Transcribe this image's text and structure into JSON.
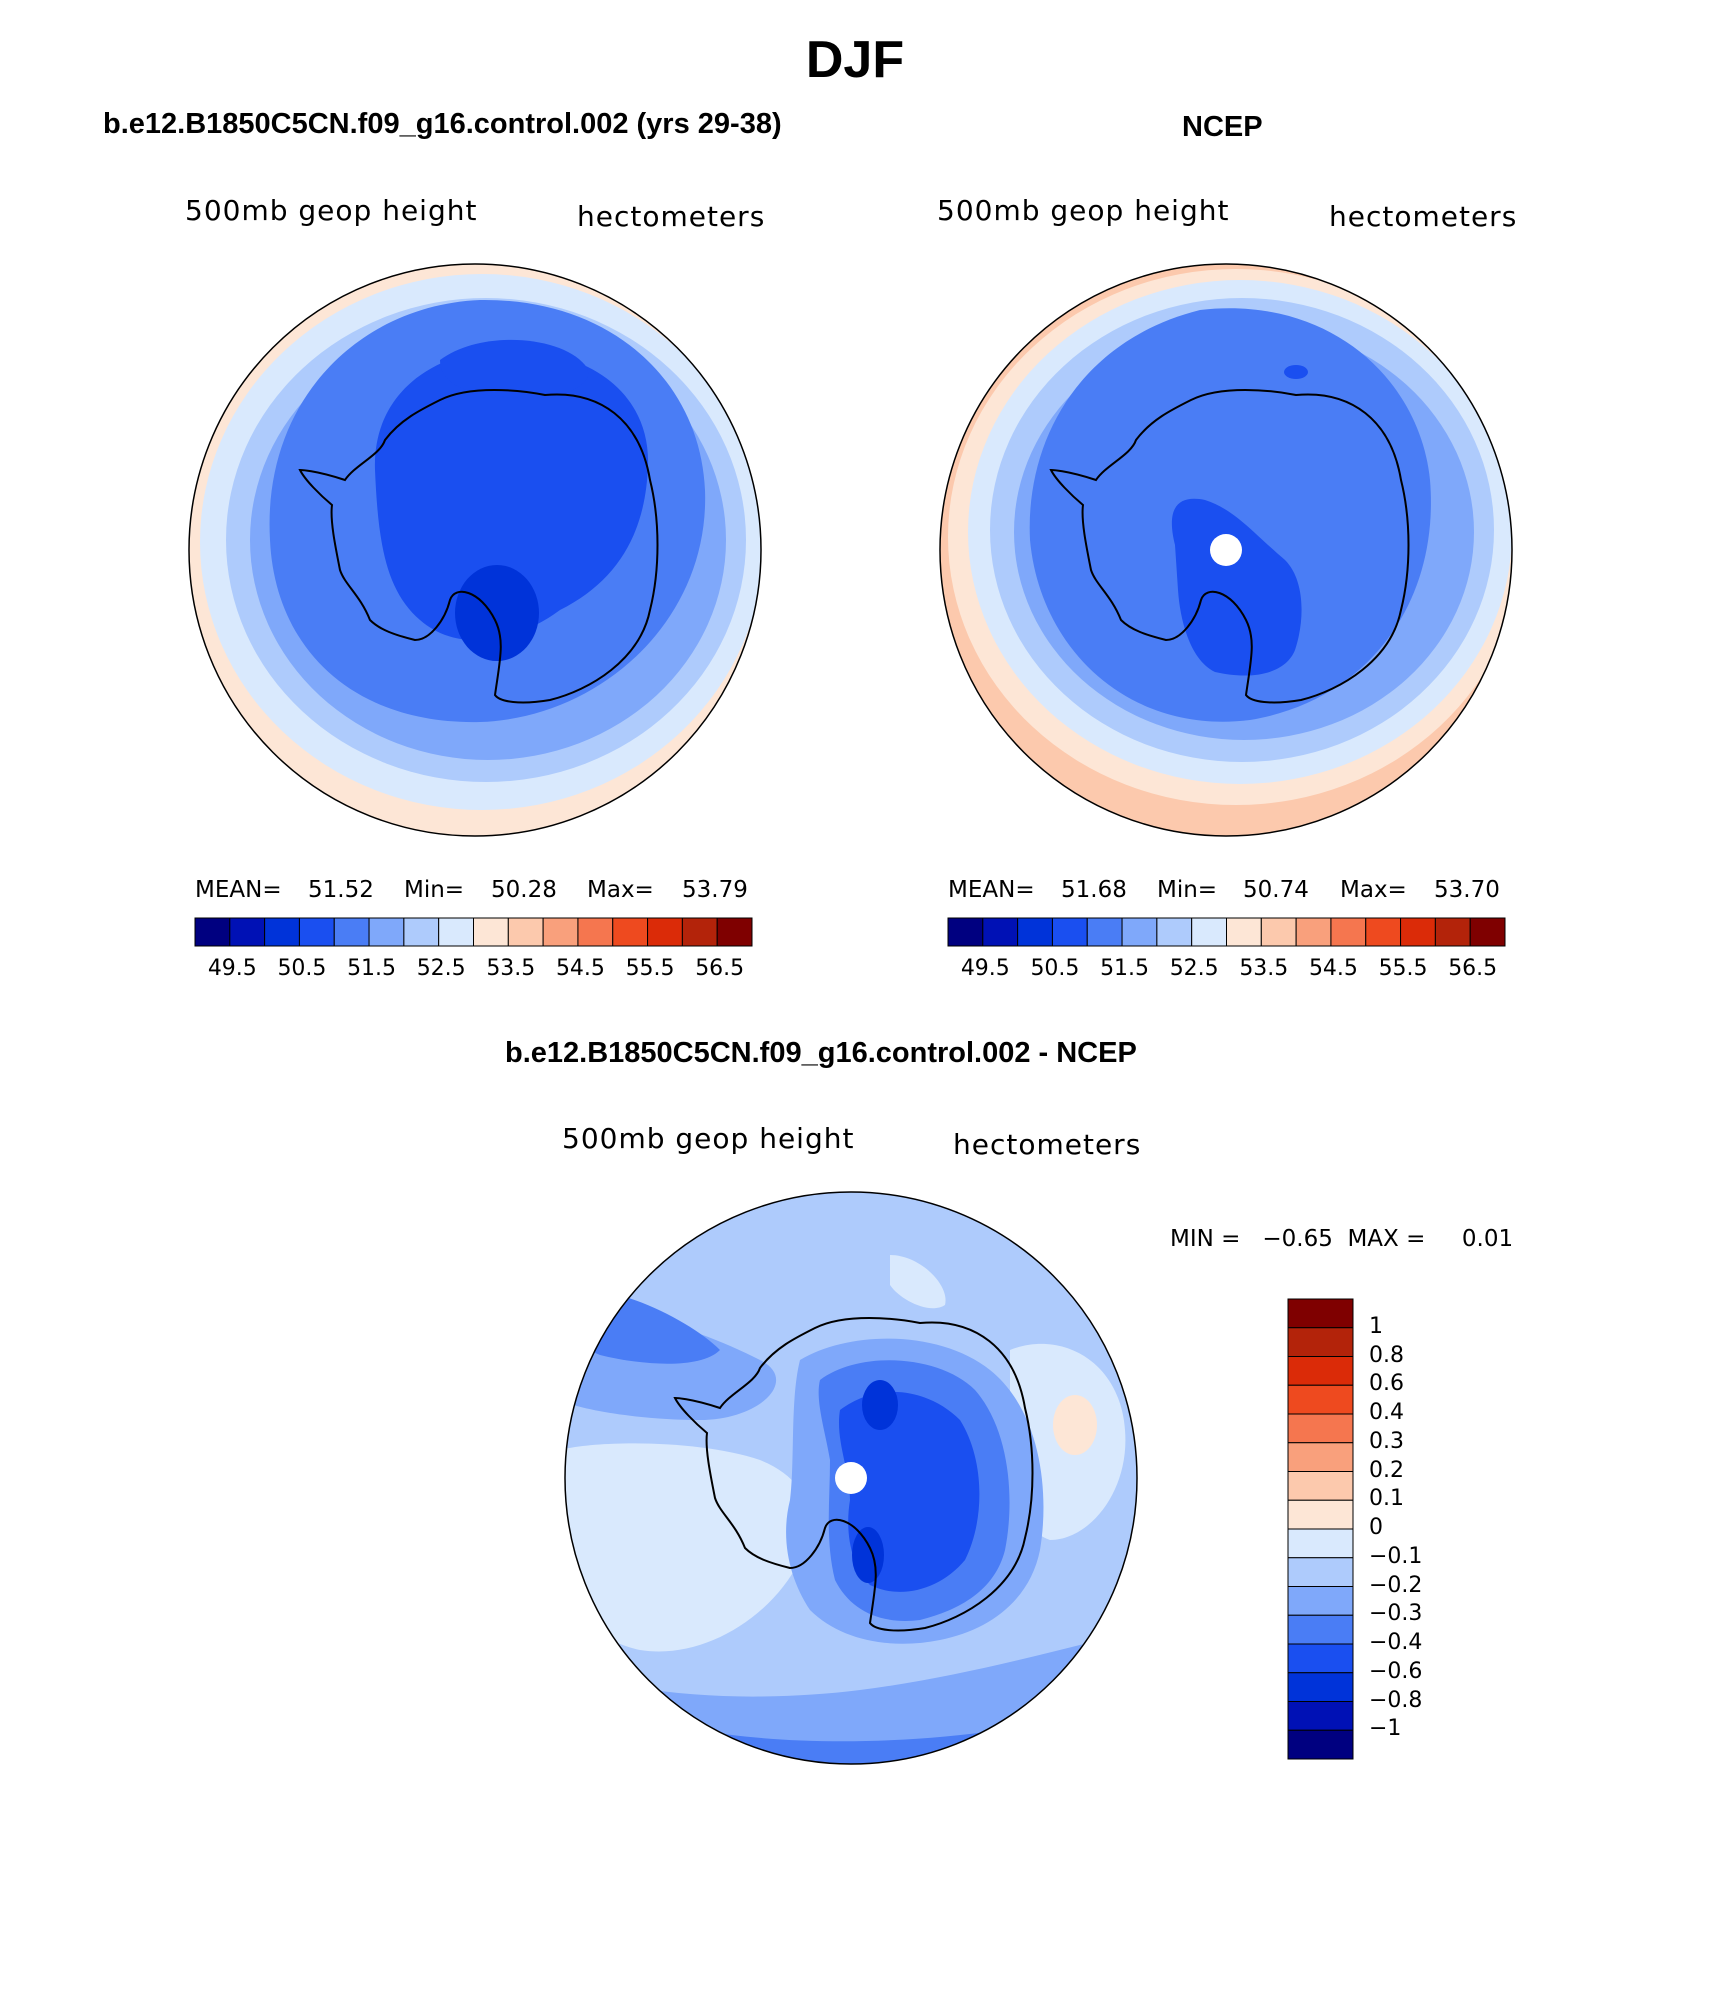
{
  "season": "DJF",
  "colors": {
    "levels12": [
      "#000080",
      "#0011b5",
      "#0033d9",
      "#1a4ff0",
      "#4a7df5",
      "#7fa8fa",
      "#aecbfc",
      "#d9e9fd",
      "#fde6d6",
      "#fcc9ad",
      "#f9a07c",
      "#f5764f",
      "#ee4a1f",
      "#db2b08",
      "#b3230a",
      "#7f0000"
    ],
    "diff": [
      "#000080",
      "#0011b5",
      "#0033d9",
      "#1a4ff0",
      "#4a7df5",
      "#7fa8fa",
      "#aecbfc",
      "#d9e9fd",
      "#fde6d6",
      "#fcc9ad",
      "#f9a07c",
      "#f5764f",
      "#ee4a1f",
      "#db2b08",
      "#b3230a",
      "#7f0000"
    ]
  },
  "panels": {
    "model": {
      "title": "b.e12.B1850C5CN.f09_g16.control.002 (yrs 29-38)",
      "left_label": "500mb geop height",
      "right_label": "hectometers",
      "mean_label": "MEAN=",
      "mean": "51.52",
      "min_label": "Min=",
      "min": "50.28",
      "max_label": "Max=",
      "max": "53.79",
      "colorbar_ticks": [
        "49.5",
        "50.5",
        "51.5",
        "52.5",
        "53.5",
        "54.5",
        "55.5",
        "56.5"
      ]
    },
    "obs": {
      "title": "NCEP",
      "left_label": "500mb geop height",
      "right_label": "hectometers",
      "mean_label": "MEAN=",
      "mean": "51.68",
      "min_label": "Min=",
      "min": "50.74",
      "max_label": "Max=",
      "max": "53.70",
      "colorbar_ticks": [
        "49.5",
        "50.5",
        "51.5",
        "52.5",
        "53.5",
        "54.5",
        "55.5",
        "56.5"
      ]
    },
    "diff": {
      "title": "b.e12.B1850C5CN.f09_g16.control.002 - NCEP",
      "left_label": "500mb geop height",
      "right_label": "hectometers",
      "min_max_text": "MIN =   −0.65  MAX =     0.01",
      "colorbar_ticks": [
        "1",
        "0.8",
        "0.6",
        "0.4",
        "0.3",
        "0.2",
        "0.1",
        "0",
        "−0.1",
        "−0.2",
        "−0.3",
        "−0.4",
        "−0.6",
        "−0.8",
        "−1"
      ]
    }
  }
}
